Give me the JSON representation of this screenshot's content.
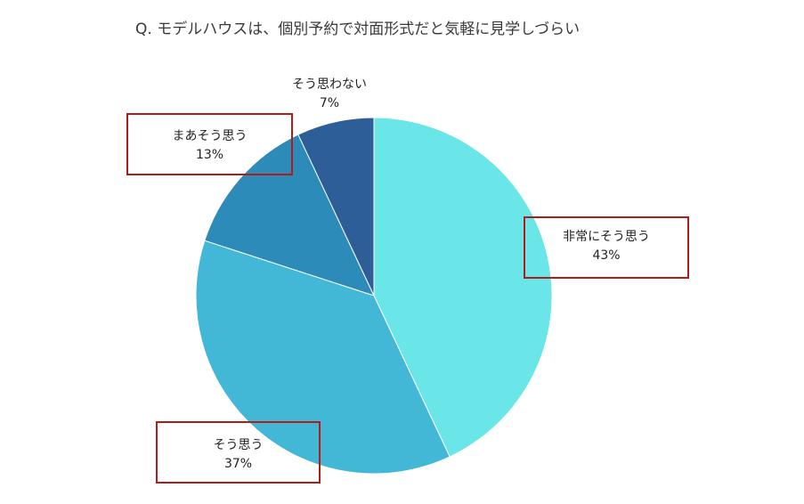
{
  "title": "Q. モデルハウスは、個別予約で対面形式だと気軽に見学しづらい",
  "chart_data": {
    "type": "pie",
    "title": "Q. モデルハウスは、個別予約で対面形式だと気軽に見学しづらい",
    "start_angle_deg": 0,
    "direction": "clockwise",
    "legend": "none",
    "slices": [
      {
        "label": "非常にそう思う",
        "value": 43,
        "display": "43%",
        "color": "#6ae5e8",
        "highlighted": true
      },
      {
        "label": "そう思う",
        "value": 37,
        "display": "37%",
        "color": "#42b7d6",
        "highlighted": true
      },
      {
        "label": "まあそう思う",
        "value": 13,
        "display": "13%",
        "color": "#2d8bba",
        "highlighted": true
      },
      {
        "label": "そう思わない",
        "value": 7,
        "display": "7%",
        "color": "#2d5e98",
        "highlighted": false
      }
    ]
  },
  "colors": {
    "highlight_box": "#b01c1c"
  }
}
